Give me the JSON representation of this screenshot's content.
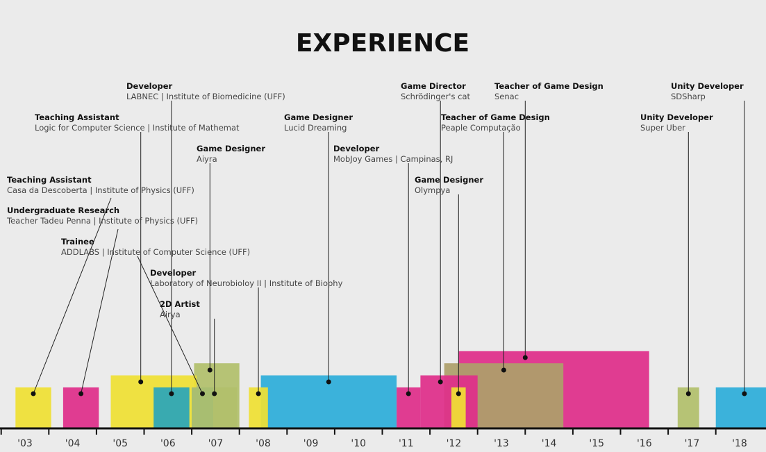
{
  "title": "EXPERIENCE",
  "colors": {
    "yellow": "#efe034",
    "magenta": "#df2e8a",
    "cyan": "#2dadd9",
    "olive": "#b2bf6c",
    "teal": "#2ba6b9",
    "tan": "#ad9f6a"
  },
  "chart_data": {
    "type": "timeline",
    "title": "EXPERIENCE",
    "x_ticks": [
      "'03",
      "'04",
      "'05",
      "'06",
      "'07",
      "'08",
      "'09",
      "'10",
      "'11",
      "'12",
      "'13",
      "'14",
      "'15",
      "'16",
      "'17",
      "'18"
    ],
    "xlim": [
      2002.8,
      2018.7
    ],
    "entries": [
      {
        "role": "Teaching Assistant",
        "org": "Casa da Descoberta | Institute of Physics (UFF)",
        "start": 2002.8,
        "end": 2003.55,
        "color": "yellow",
        "level": 1
      },
      {
        "role": "Undergraduate Research",
        "org": "Teacher Tadeu Penna | Institute of Physics (UFF)",
        "start": 2003.8,
        "end": 2004.55,
        "color": "magenta",
        "level": 1
      },
      {
        "role": "Teaching Assistant",
        "org": "Logic for Computer Science | Institute of Mathemat",
        "start": 2004.8,
        "end": 2006.6,
        "color": "yellow",
        "level": 1.3
      },
      {
        "role": "Developer",
        "org": "LABNEC | Institute of Biomedicine (UFF)",
        "start": 2005.7,
        "end": 2006.45,
        "color": "teal",
        "level": 1
      },
      {
        "role": "Trainee",
        "org": "ADDLABS | Institute of Computer Science (UFF)",
        "start": 2006.5,
        "end": 2006.95,
        "color": "teal",
        "level": 1
      },
      {
        "role": "Game Designer",
        "org": "Aiyra",
        "start": 2006.55,
        "end": 2007.5,
        "color": "olive",
        "level": 1.6
      },
      {
        "role": "2D Artist",
        "org": "Airya",
        "start": 2006.5,
        "end": 2007.45,
        "color": "olive",
        "level": 1
      },
      {
        "role": "Developer",
        "org": "Laboratory of Neurobioloy II | Institute of Biophy",
        "start": 2007.7,
        "end": 2008.1,
        "color": "yellow",
        "level": 1
      },
      {
        "role": "Game Designer",
        "org": "Lucid Dreaming",
        "start": 2007.95,
        "end": 2010.8,
        "color": "cyan",
        "level": 1.3
      },
      {
        "role": "Developer",
        "org": "MobJoy Games | Campinas, RJ",
        "start": 2010.8,
        "end": 2011.3,
        "color": "magenta",
        "level": 1
      },
      {
        "role": "Game Director",
        "org": "Schrödinger's cat",
        "start": 2011.3,
        "end": 2012.5,
        "color": "magenta",
        "level": 1.3
      },
      {
        "role": "Game Designer",
        "org": "Olympya",
        "start": 2011.95,
        "end": 2012.25,
        "color": "yellow",
        "level": 1
      },
      {
        "role": "Teacher of Game Design",
        "org": "Peaple Computação",
        "start": 2011.8,
        "end": 2014.3,
        "color": "tan",
        "level": 1.6
      },
      {
        "role": "Teacher of Game Design",
        "org": "Senac",
        "start": 2012.1,
        "end": 2016.1,
        "color": "magenta",
        "level": 1.9
      },
      {
        "role": "Unity Developer",
        "org": "Super Uber",
        "start": 2016.7,
        "end": 2017.15,
        "color": "olive",
        "level": 1
      },
      {
        "role": "Unity Developer",
        "org": "SDSharp",
        "start": 2017.5,
        "end": 2018.7,
        "color": "cyan",
        "level": 1
      }
    ]
  }
}
